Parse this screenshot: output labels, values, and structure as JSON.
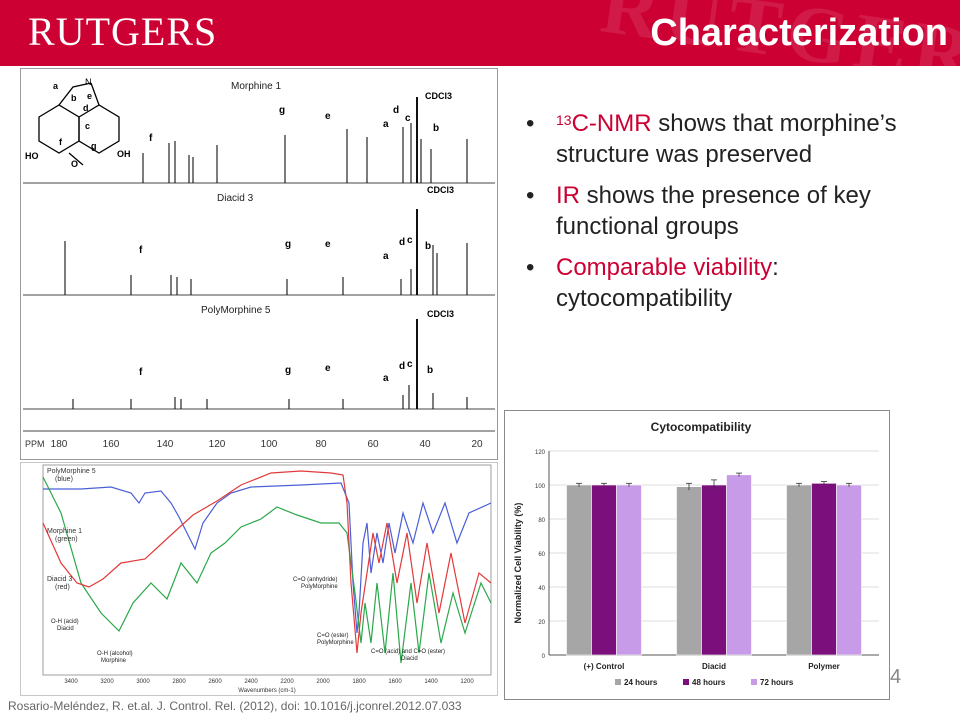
{
  "header": {
    "logo_text": "RUTGERS",
    "title": "Characterization",
    "color": "#cc0033"
  },
  "bullets": [
    {
      "sup": "13",
      "highlight": "C-NMR",
      "rest": " shows that morphine’s structure was preserved"
    },
    {
      "sup": "",
      "highlight": "IR",
      "rest": " shows the presence of key functional groups"
    },
    {
      "sup": "",
      "highlight": "Comparable viability",
      "rest": ": cytocompatibility"
    }
  ],
  "nmr": {
    "panels": [
      "Morphine 1",
      "Diacid 3",
      "PolyMorphine 5"
    ],
    "solvent": "CDCl3",
    "peak_letters": [
      "a",
      "b",
      "c",
      "d",
      "e",
      "f",
      "g"
    ],
    "structure_labels": [
      "a",
      "N",
      "b",
      "e",
      "d",
      "c",
      "f",
      "g",
      "HO",
      "O",
      "OH"
    ],
    "axis_label": "PPM",
    "ticks": [
      "180",
      "160",
      "140",
      "120",
      "100",
      "80",
      "60",
      "40",
      "20"
    ]
  },
  "ir": {
    "legend": [
      {
        "name": "PolyMorphine 5",
        "color_word": "(blue)",
        "color": "#4a5fd6"
      },
      {
        "name": "Morphine 1",
        "color_word": "(green)",
        "color": "#2aa84a"
      },
      {
        "name": "Diacid 3",
        "color_word": "(red)",
        "color": "#e23a3a"
      }
    ],
    "annotations": [
      "O-H (acid)",
      "Diacid",
      "O-H (alcohol)",
      "Morphine",
      "C=O (anhydride)",
      "PolyMorphine",
      "C=O (ester)",
      "PolyMorphine",
      "C=O (acid) and C=O (ester)",
      "Diacid"
    ],
    "ticks": [
      "3400",
      "3200",
      "3000",
      "2800",
      "2600",
      "2400",
      "2200",
      "2000",
      "1800",
      "1600",
      "1400",
      "1200"
    ],
    "axis_label": "Wavenumbers (cm-1)"
  },
  "chart_data": {
    "type": "bar",
    "title": "Cytocompatibility",
    "categories": [
      "(+) Control",
      "Diacid",
      "Polymer"
    ],
    "series": [
      {
        "name": "24 hours",
        "color": "#a6a6a6",
        "values": [
          100,
          99,
          100
        ],
        "errors": [
          1,
          2,
          1
        ]
      },
      {
        "name": "48 hours",
        "color": "#7b0f7b",
        "values": [
          100,
          100,
          101
        ],
        "errors": [
          1,
          3,
          1
        ]
      },
      {
        "name": "72 hours",
        "color": "#c79be8",
        "values": [
          100,
          106,
          100
        ],
        "errors": [
          1,
          1,
          1
        ]
      }
    ],
    "ylabel": "Normalized Cell Viability (%)",
    "xlabel": "",
    "ylim": [
      0,
      120
    ],
    "yticks": [
      0,
      20,
      40,
      60,
      80,
      100,
      120
    ],
    "grid": true,
    "legend_placement": "bottom"
  },
  "footer": {
    "page_number": "4",
    "citation": "Rosario-Meléndez, R. et.al. J. Control. Rel. (2012),  doi: 10.1016/j.jconrel.2012.07.033"
  }
}
